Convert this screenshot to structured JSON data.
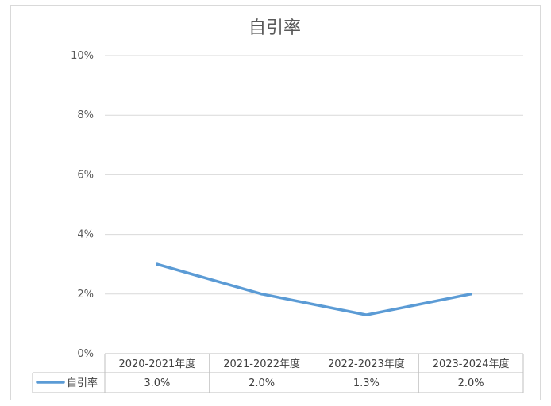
{
  "chart_data": {
    "type": "line",
    "title": "自引率",
    "categories": [
      "2020-2021年度",
      "2021-2022年度",
      "2022-2023年度",
      "2023-2024年度"
    ],
    "series": [
      {
        "name": "自引率",
        "values": [
          3.0,
          2.0,
          1.3,
          2.0
        ],
        "labels": [
          "3.0%",
          "2.0%",
          "1.3%",
          "2.0%"
        ],
        "color": "#5b9bd5"
      }
    ],
    "y_ticks": [
      "0%",
      "2%",
      "4%",
      "6%",
      "8%",
      "10%"
    ],
    "ylim": [
      0,
      10
    ],
    "grid": true,
    "legend": "data-table-left",
    "data_table": true
  }
}
